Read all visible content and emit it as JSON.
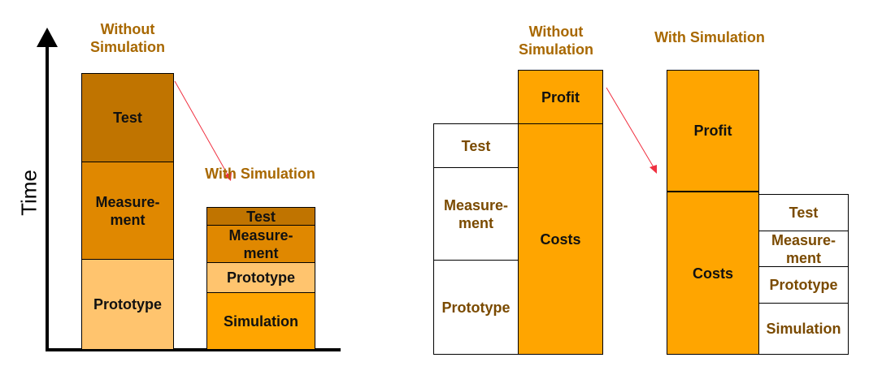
{
  "left_diagram": {
    "axis_label": "Time",
    "without": {
      "title": "Without Simulation",
      "segments": [
        {
          "label": "Test",
          "color": "#C07400"
        },
        {
          "label": "Measure-\nment",
          "color": "#E08800"
        },
        {
          "label": "Prototype",
          "color": "#FFC46E"
        }
      ]
    },
    "with": {
      "title": "With Simulation",
      "segments": [
        {
          "label": "Test",
          "color": "#C07400"
        },
        {
          "label": "Measure-\nment",
          "color": "#E08800"
        },
        {
          "label": "Prototype",
          "color": "#FFC46E"
        },
        {
          "label": "Simulation",
          "color": "#FFA500"
        }
      ]
    }
  },
  "right_diagram": {
    "without": {
      "title": "Without Simulation",
      "bar": [
        {
          "label": "Profit"
        },
        {
          "label": "Costs"
        }
      ],
      "breakdown": [
        {
          "label": "Test"
        },
        {
          "label": "Measure-\nment"
        },
        {
          "label": "Prototype"
        }
      ]
    },
    "with": {
      "title": "With Simulation",
      "bar": [
        {
          "label": "Profit"
        },
        {
          "label": "Costs"
        }
      ],
      "breakdown": [
        {
          "label": "Test"
        },
        {
          "label": "Measure-\nment"
        },
        {
          "label": "Prototype"
        },
        {
          "label": "Simulation"
        }
      ]
    },
    "bar_color": "#FFA500"
  },
  "colors": {
    "title": "#A86800",
    "arrow": "#F03040",
    "breakdown_text": "#7A4A00"
  }
}
